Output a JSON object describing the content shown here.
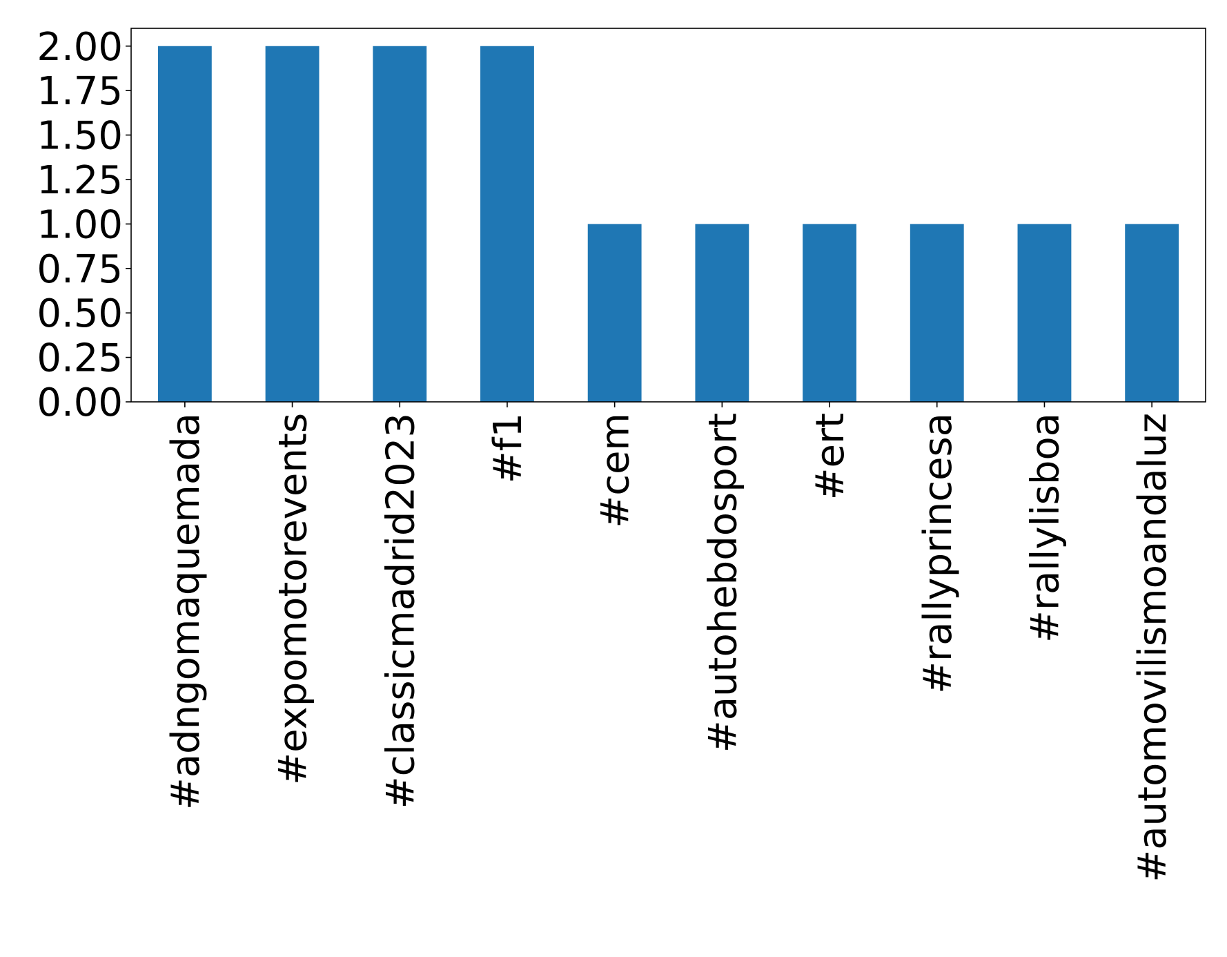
{
  "chart_data": {
    "type": "bar",
    "title": "",
    "xlabel": "",
    "ylabel": "",
    "categories": [
      "#adngomaquemada",
      "#expomotorevents",
      "#classicmadrid2023",
      "#f1",
      "#cem",
      "#autohebdosport",
      "#ert",
      "#rallyprincesa",
      "#rallylisboa",
      "#automovilismoandaluz"
    ],
    "values": [
      2,
      2,
      2,
      2,
      1,
      1,
      1,
      1,
      1,
      1
    ],
    "ylim": [
      0,
      2.1
    ],
    "yticks": [
      0.0,
      0.25,
      0.5,
      0.75,
      1.0,
      1.25,
      1.5,
      1.75,
      2.0
    ],
    "ytick_labels": [
      "0.00",
      "0.25",
      "0.50",
      "0.75",
      "1.00",
      "1.25",
      "1.50",
      "1.75",
      "2.00"
    ],
    "grid": false,
    "legend": "none",
    "bar_color": "#1f77b4",
    "x_label_rotation": "vertical"
  }
}
